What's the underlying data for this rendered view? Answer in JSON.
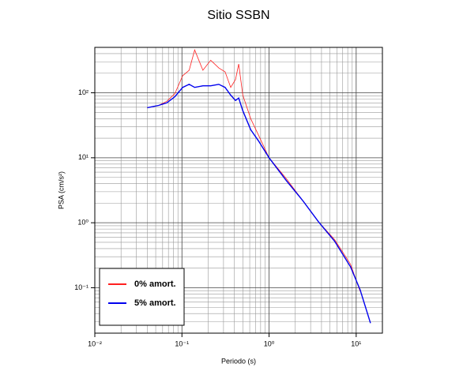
{
  "chart_data": {
    "type": "line",
    "title": "Sitio SSBN",
    "x_label": "Periodo (s)",
    "y_label": "PSA (cm/s²)",
    "log_x": true,
    "log_y": true,
    "grid": true,
    "minor_grid": true,
    "legend": "lower left",
    "xlim": [
      0.01,
      20
    ],
    "ylim": [
      0.02,
      500
    ],
    "xticks": [
      {
        "value": 0.01,
        "label": "10⁻²"
      },
      {
        "value": 0.1,
        "label": "10⁻¹"
      },
      {
        "value": 1,
        "label": "10⁰"
      },
      {
        "value": 10,
        "label": "10¹"
      }
    ],
    "yticks": [
      {
        "value": 0.1,
        "label": "10⁻¹"
      },
      {
        "value": 1,
        "label": "10⁰"
      },
      {
        "value": 10,
        "label": "10¹"
      },
      {
        "value": 100,
        "label": "10²"
      }
    ],
    "x": [
      0.04,
      0.054,
      0.067,
      0.083,
      0.102,
      0.121,
      0.14,
      0.174,
      0.214,
      0.265,
      0.313,
      0.363,
      0.412,
      0.448,
      0.5,
      0.615,
      0.76,
      1.0,
      1.59,
      2.43,
      3.7,
      5.65,
      8.6,
      11.1,
      14.6
    ],
    "series": [
      {
        "name": "0% amort.",
        "color": "#ff2020",
        "values": [
          59,
          64,
          74,
          97,
          183,
          222,
          456,
          222,
          317,
          241,
          210,
          121,
          160,
          277,
          92,
          40,
          22,
          10,
          4.7,
          2.2,
          1.03,
          0.55,
          0.23,
          0.088,
          null
        ]
      },
      {
        "name": "5% amort.",
        "color": "#0000ee",
        "values": [
          59,
          64,
          70,
          87,
          121,
          135,
          121,
          128,
          128,
          135,
          121,
          92,
          76,
          83,
          53,
          27,
          18,
          10,
          4.4,
          2.2,
          1.03,
          0.52,
          0.21,
          0.093,
          0.0285
        ]
      }
    ]
  }
}
